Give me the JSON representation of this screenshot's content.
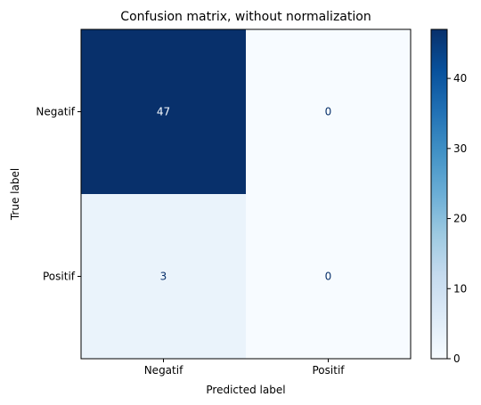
{
  "chart_data": {
    "type": "heatmap",
    "title": "Confusion matrix, without normalization",
    "xlabel": "Predicted label",
    "ylabel": "True label",
    "x_categories": [
      "Negatif",
      "Positif"
    ],
    "y_categories": [
      "Negatif",
      "Positif"
    ],
    "matrix": [
      [
        47,
        0
      ],
      [
        3,
        0
      ]
    ],
    "colormap": "Blues",
    "colorbar": {
      "min": 0,
      "max": 47,
      "ticks": [
        0,
        10,
        20,
        30,
        40
      ]
    },
    "colors": {
      "low": "#f7fbff",
      "high": "#08306b",
      "dark_text": "#08306b",
      "light_text": "#f7fbff"
    }
  }
}
